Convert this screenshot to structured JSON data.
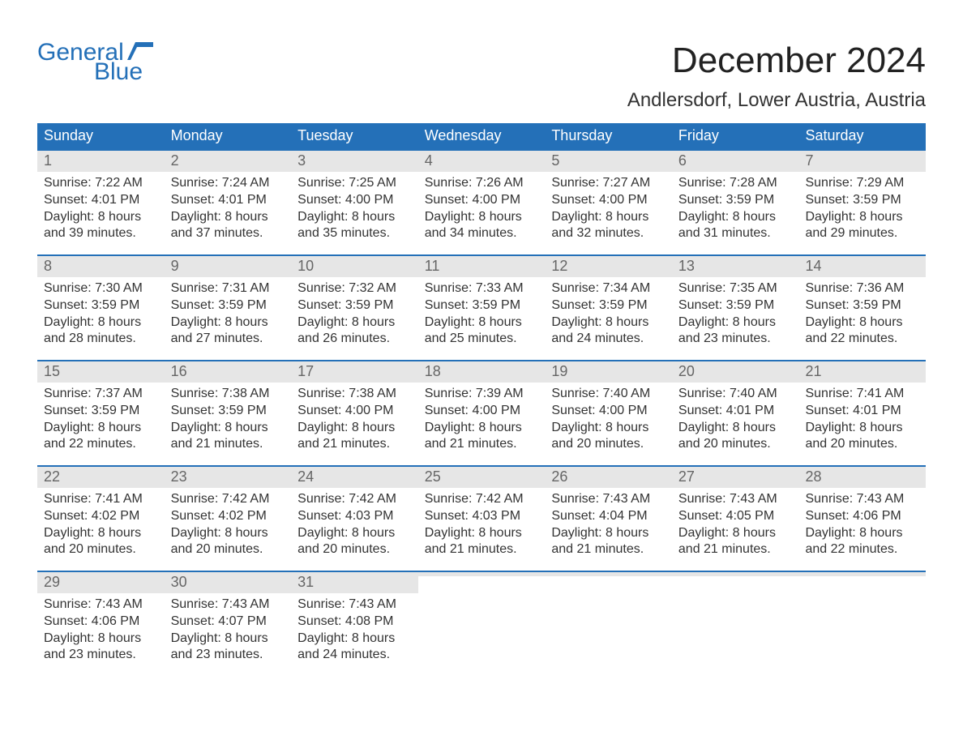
{
  "brand": {
    "general": "General",
    "blue": "Blue"
  },
  "title": "December 2024",
  "subtitle": "Andlersdorf, Lower Austria, Austria",
  "colors": {
    "header_bg": "#2470b8",
    "header_text": "#ffffff",
    "daynum_bg": "#e6e6e6",
    "daynum_text": "#666666",
    "body_text": "#333333",
    "rule": "#2470b8",
    "page_bg": "#ffffff",
    "logo_general": "#444444",
    "logo_blue": "#2470b8"
  },
  "typography": {
    "title_fontsize": 44,
    "subtitle_fontsize": 24,
    "dow_fontsize": 18,
    "daynum_fontsize": 18,
    "body_fontsize": 16
  },
  "dow": [
    "Sunday",
    "Monday",
    "Tuesday",
    "Wednesday",
    "Thursday",
    "Friday",
    "Saturday"
  ],
  "weeks": [
    [
      {
        "n": "1",
        "sr": "Sunrise: 7:22 AM",
        "ss": "Sunset: 4:01 PM",
        "d1": "Daylight: 8 hours",
        "d2": "and 39 minutes."
      },
      {
        "n": "2",
        "sr": "Sunrise: 7:24 AM",
        "ss": "Sunset: 4:01 PM",
        "d1": "Daylight: 8 hours",
        "d2": "and 37 minutes."
      },
      {
        "n": "3",
        "sr": "Sunrise: 7:25 AM",
        "ss": "Sunset: 4:00 PM",
        "d1": "Daylight: 8 hours",
        "d2": "and 35 minutes."
      },
      {
        "n": "4",
        "sr": "Sunrise: 7:26 AM",
        "ss": "Sunset: 4:00 PM",
        "d1": "Daylight: 8 hours",
        "d2": "and 34 minutes."
      },
      {
        "n": "5",
        "sr": "Sunrise: 7:27 AM",
        "ss": "Sunset: 4:00 PM",
        "d1": "Daylight: 8 hours",
        "d2": "and 32 minutes."
      },
      {
        "n": "6",
        "sr": "Sunrise: 7:28 AM",
        "ss": "Sunset: 3:59 PM",
        "d1": "Daylight: 8 hours",
        "d2": "and 31 minutes."
      },
      {
        "n": "7",
        "sr": "Sunrise: 7:29 AM",
        "ss": "Sunset: 3:59 PM",
        "d1": "Daylight: 8 hours",
        "d2": "and 29 minutes."
      }
    ],
    [
      {
        "n": "8",
        "sr": "Sunrise: 7:30 AM",
        "ss": "Sunset: 3:59 PM",
        "d1": "Daylight: 8 hours",
        "d2": "and 28 minutes."
      },
      {
        "n": "9",
        "sr": "Sunrise: 7:31 AM",
        "ss": "Sunset: 3:59 PM",
        "d1": "Daylight: 8 hours",
        "d2": "and 27 minutes."
      },
      {
        "n": "10",
        "sr": "Sunrise: 7:32 AM",
        "ss": "Sunset: 3:59 PM",
        "d1": "Daylight: 8 hours",
        "d2": "and 26 minutes."
      },
      {
        "n": "11",
        "sr": "Sunrise: 7:33 AM",
        "ss": "Sunset: 3:59 PM",
        "d1": "Daylight: 8 hours",
        "d2": "and 25 minutes."
      },
      {
        "n": "12",
        "sr": "Sunrise: 7:34 AM",
        "ss": "Sunset: 3:59 PM",
        "d1": "Daylight: 8 hours",
        "d2": "and 24 minutes."
      },
      {
        "n": "13",
        "sr": "Sunrise: 7:35 AM",
        "ss": "Sunset: 3:59 PM",
        "d1": "Daylight: 8 hours",
        "d2": "and 23 minutes."
      },
      {
        "n": "14",
        "sr": "Sunrise: 7:36 AM",
        "ss": "Sunset: 3:59 PM",
        "d1": "Daylight: 8 hours",
        "d2": "and 22 minutes."
      }
    ],
    [
      {
        "n": "15",
        "sr": "Sunrise: 7:37 AM",
        "ss": "Sunset: 3:59 PM",
        "d1": "Daylight: 8 hours",
        "d2": "and 22 minutes."
      },
      {
        "n": "16",
        "sr": "Sunrise: 7:38 AM",
        "ss": "Sunset: 3:59 PM",
        "d1": "Daylight: 8 hours",
        "d2": "and 21 minutes."
      },
      {
        "n": "17",
        "sr": "Sunrise: 7:38 AM",
        "ss": "Sunset: 4:00 PM",
        "d1": "Daylight: 8 hours",
        "d2": "and 21 minutes."
      },
      {
        "n": "18",
        "sr": "Sunrise: 7:39 AM",
        "ss": "Sunset: 4:00 PM",
        "d1": "Daylight: 8 hours",
        "d2": "and 21 minutes."
      },
      {
        "n": "19",
        "sr": "Sunrise: 7:40 AM",
        "ss": "Sunset: 4:00 PM",
        "d1": "Daylight: 8 hours",
        "d2": "and 20 minutes."
      },
      {
        "n": "20",
        "sr": "Sunrise: 7:40 AM",
        "ss": "Sunset: 4:01 PM",
        "d1": "Daylight: 8 hours",
        "d2": "and 20 minutes."
      },
      {
        "n": "21",
        "sr": "Sunrise: 7:41 AM",
        "ss": "Sunset: 4:01 PM",
        "d1": "Daylight: 8 hours",
        "d2": "and 20 minutes."
      }
    ],
    [
      {
        "n": "22",
        "sr": "Sunrise: 7:41 AM",
        "ss": "Sunset: 4:02 PM",
        "d1": "Daylight: 8 hours",
        "d2": "and 20 minutes."
      },
      {
        "n": "23",
        "sr": "Sunrise: 7:42 AM",
        "ss": "Sunset: 4:02 PM",
        "d1": "Daylight: 8 hours",
        "d2": "and 20 minutes."
      },
      {
        "n": "24",
        "sr": "Sunrise: 7:42 AM",
        "ss": "Sunset: 4:03 PM",
        "d1": "Daylight: 8 hours",
        "d2": "and 20 minutes."
      },
      {
        "n": "25",
        "sr": "Sunrise: 7:42 AM",
        "ss": "Sunset: 4:03 PM",
        "d1": "Daylight: 8 hours",
        "d2": "and 21 minutes."
      },
      {
        "n": "26",
        "sr": "Sunrise: 7:43 AM",
        "ss": "Sunset: 4:04 PM",
        "d1": "Daylight: 8 hours",
        "d2": "and 21 minutes."
      },
      {
        "n": "27",
        "sr": "Sunrise: 7:43 AM",
        "ss": "Sunset: 4:05 PM",
        "d1": "Daylight: 8 hours",
        "d2": "and 21 minutes."
      },
      {
        "n": "28",
        "sr": "Sunrise: 7:43 AM",
        "ss": "Sunset: 4:06 PM",
        "d1": "Daylight: 8 hours",
        "d2": "and 22 minutes."
      }
    ],
    [
      {
        "n": "29",
        "sr": "Sunrise: 7:43 AM",
        "ss": "Sunset: 4:06 PM",
        "d1": "Daylight: 8 hours",
        "d2": "and 23 minutes."
      },
      {
        "n": "30",
        "sr": "Sunrise: 7:43 AM",
        "ss": "Sunset: 4:07 PM",
        "d1": "Daylight: 8 hours",
        "d2": "and 23 minutes."
      },
      {
        "n": "31",
        "sr": "Sunrise: 7:43 AM",
        "ss": "Sunset: 4:08 PM",
        "d1": "Daylight: 8 hours",
        "d2": "and 24 minutes."
      },
      {
        "n": "",
        "sr": "",
        "ss": "",
        "d1": "",
        "d2": ""
      },
      {
        "n": "",
        "sr": "",
        "ss": "",
        "d1": "",
        "d2": ""
      },
      {
        "n": "",
        "sr": "",
        "ss": "",
        "d1": "",
        "d2": ""
      },
      {
        "n": "",
        "sr": "",
        "ss": "",
        "d1": "",
        "d2": ""
      }
    ]
  ]
}
